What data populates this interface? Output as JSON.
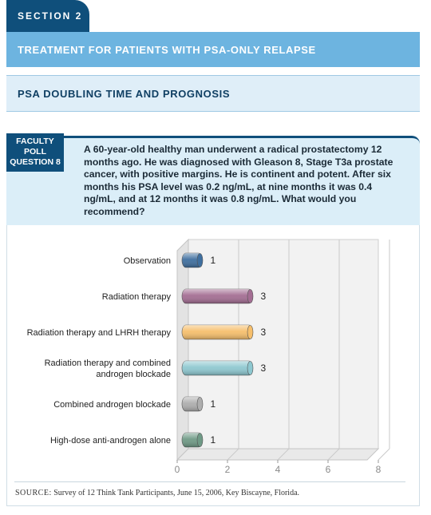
{
  "section": {
    "label": "SECTION 2"
  },
  "header": {
    "title": "TREATMENT FOR PATIENTS WITH PSA-ONLY RELAPSE",
    "subtitle": "PSA DOUBLING TIME AND PROGNOSIS"
  },
  "poll": {
    "label_line1": "FACULTY",
    "label_line2": "POLL",
    "label_line3": "QUESTION 8",
    "question": "A 60-year-old healthy man underwent a radical prostatectomy 12 months ago. He was diagnosed with Gleason 8, Stage T3a prostate cancer, with positive margins. He is continent and potent. After six months his PSA level was 0.2 ng/mL, at nine months it was 0.4 ng/mL, and at 12 months it was 0.8 ng/mL. What would you recommend?"
  },
  "chart_data": {
    "type": "bar",
    "orientation": "horizontal",
    "categories": [
      "Observation",
      "Radiation therapy",
      "Radiation therapy and LHRH therapy",
      "Radiation therapy and combined androgen blockade",
      "Combined androgen blockade",
      "High-dose anti-androgen alone"
    ],
    "category_lines": [
      [
        "Observation"
      ],
      [
        "Radiation therapy"
      ],
      [
        "Radiation therapy and LHRH therapy"
      ],
      [
        "Radiation therapy and combined",
        "androgen blockade"
      ],
      [
        "Combined androgen blockade"
      ],
      [
        "High-dose anti-androgen alone"
      ]
    ],
    "values": [
      1,
      3,
      3,
      3,
      1,
      1
    ],
    "colors": [
      "#3f6f9f",
      "#a46e93",
      "#f6bf6c",
      "#8ec8d0",
      "#aeaeae",
      "#6f9a86"
    ],
    "xlim": [
      0,
      8
    ],
    "xticks": [
      0,
      2,
      4,
      6,
      8
    ],
    "grid": true
  },
  "source": {
    "label": "SOURCE:",
    "text": " Survey of 12 Think Tank Participants, June 15, 2006, Key Biscayne, Florida."
  }
}
